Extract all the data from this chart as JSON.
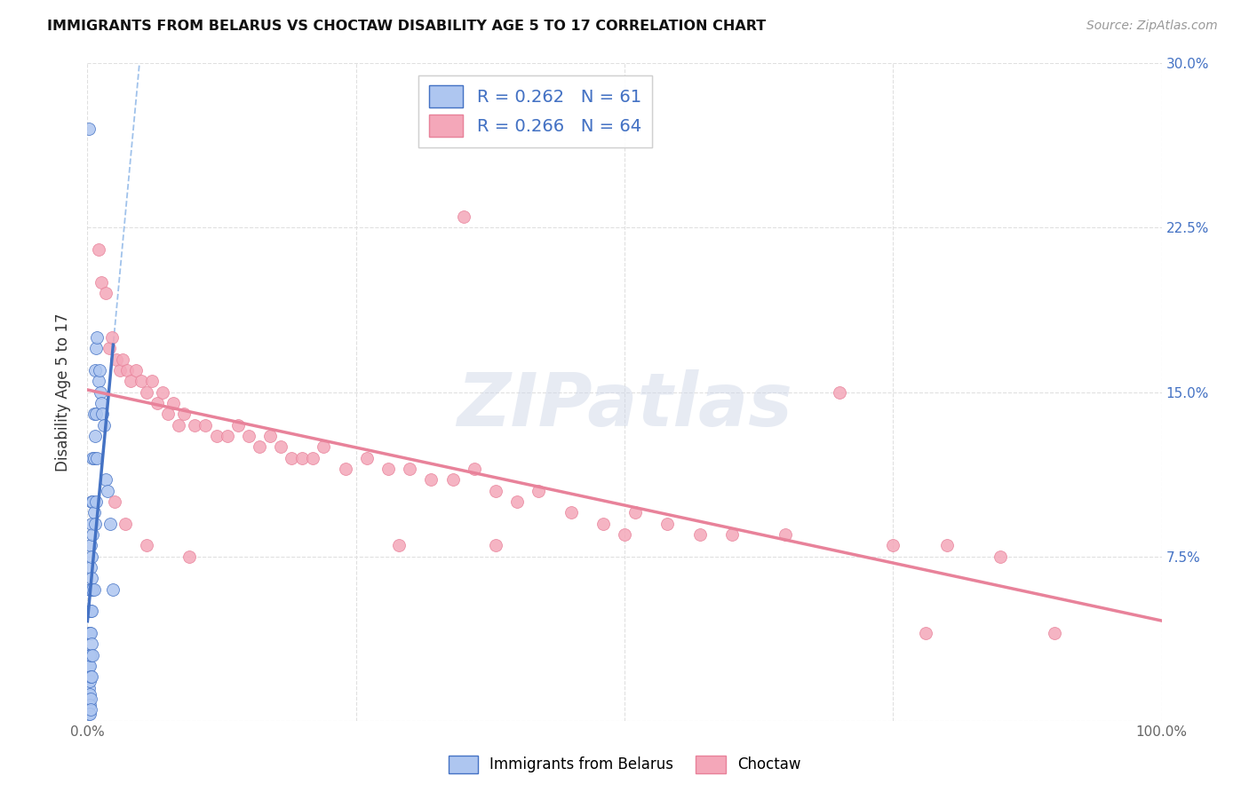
{
  "title": "IMMIGRANTS FROM BELARUS VS CHOCTAW DISABILITY AGE 5 TO 17 CORRELATION CHART",
  "source": "Source: ZipAtlas.com",
  "ylabel": "Disability Age 5 to 17",
  "legend_label1": "Immigrants from Belarus",
  "legend_label2": "Choctaw",
  "r1": 0.262,
  "n1": 61,
  "r2": 0.266,
  "n2": 64,
  "xlim": [
    0.0,
    1.0
  ],
  "ylim": [
    0.0,
    0.3
  ],
  "xtick_positions": [
    0.0,
    0.25,
    0.5,
    0.75,
    1.0
  ],
  "xticklabels": [
    "0.0%",
    "",
    "",
    "",
    "100.0%"
  ],
  "ytick_positions": [
    0.0,
    0.075,
    0.15,
    0.225,
    0.3
  ],
  "yticklabels_right": [
    "",
    "7.5%",
    "15.0%",
    "22.5%",
    "30.0%"
  ],
  "color_belarus": "#aec6f0",
  "color_choctaw": "#f4a7b9",
  "edge_belarus": "#4472c4",
  "edge_choctaw": "#e8829a",
  "line_belarus": "#4472c4",
  "line_choctaw": "#e8829a",
  "dashed_color": "#90b8e8",
  "grid_color": "#e0e0e0",
  "background": "#ffffff",
  "watermark": "ZIPatlas",
  "scatter_belarus_x": [
    0.001,
    0.001,
    0.001,
    0.001,
    0.001,
    0.001,
    0.001,
    0.001,
    0.001,
    0.002,
    0.002,
    0.002,
    0.002,
    0.002,
    0.002,
    0.002,
    0.002,
    0.002,
    0.003,
    0.003,
    0.003,
    0.003,
    0.003,
    0.003,
    0.003,
    0.003,
    0.003,
    0.004,
    0.004,
    0.004,
    0.004,
    0.004,
    0.004,
    0.004,
    0.005,
    0.005,
    0.005,
    0.005,
    0.005,
    0.006,
    0.006,
    0.006,
    0.006,
    0.007,
    0.007,
    0.007,
    0.008,
    0.008,
    0.008,
    0.009,
    0.009,
    0.01,
    0.011,
    0.012,
    0.013,
    0.014,
    0.015,
    0.017,
    0.019,
    0.021,
    0.024
  ],
  "scatter_belarus_y": [
    0.27,
    0.04,
    0.03,
    0.025,
    0.02,
    0.015,
    0.01,
    0.007,
    0.003,
    0.06,
    0.05,
    0.04,
    0.03,
    0.025,
    0.018,
    0.012,
    0.007,
    0.003,
    0.08,
    0.07,
    0.06,
    0.05,
    0.04,
    0.03,
    0.02,
    0.01,
    0.005,
    0.1,
    0.09,
    0.075,
    0.065,
    0.05,
    0.035,
    0.02,
    0.12,
    0.1,
    0.085,
    0.06,
    0.03,
    0.14,
    0.12,
    0.095,
    0.06,
    0.16,
    0.13,
    0.09,
    0.17,
    0.14,
    0.1,
    0.175,
    0.12,
    0.155,
    0.16,
    0.15,
    0.145,
    0.14,
    0.135,
    0.11,
    0.105,
    0.09,
    0.06
  ],
  "scatter_choctaw_x": [
    0.01,
    0.013,
    0.017,
    0.02,
    0.023,
    0.027,
    0.03,
    0.033,
    0.037,
    0.04,
    0.045,
    0.05,
    0.055,
    0.06,
    0.065,
    0.07,
    0.075,
    0.08,
    0.085,
    0.09,
    0.1,
    0.11,
    0.12,
    0.13,
    0.14,
    0.15,
    0.16,
    0.17,
    0.18,
    0.19,
    0.2,
    0.21,
    0.22,
    0.24,
    0.26,
    0.28,
    0.3,
    0.32,
    0.34,
    0.36,
    0.38,
    0.4,
    0.42,
    0.45,
    0.48,
    0.51,
    0.54,
    0.57,
    0.6,
    0.65,
    0.7,
    0.75,
    0.8,
    0.85,
    0.9,
    0.35,
    0.78,
    0.025,
    0.035,
    0.055,
    0.095,
    0.29,
    0.38,
    0.5
  ],
  "scatter_choctaw_y": [
    0.215,
    0.2,
    0.195,
    0.17,
    0.175,
    0.165,
    0.16,
    0.165,
    0.16,
    0.155,
    0.16,
    0.155,
    0.15,
    0.155,
    0.145,
    0.15,
    0.14,
    0.145,
    0.135,
    0.14,
    0.135,
    0.135,
    0.13,
    0.13,
    0.135,
    0.13,
    0.125,
    0.13,
    0.125,
    0.12,
    0.12,
    0.12,
    0.125,
    0.115,
    0.12,
    0.115,
    0.115,
    0.11,
    0.11,
    0.115,
    0.105,
    0.1,
    0.105,
    0.095,
    0.09,
    0.095,
    0.09,
    0.085,
    0.085,
    0.085,
    0.15,
    0.08,
    0.08,
    0.075,
    0.04,
    0.23,
    0.04,
    0.1,
    0.09,
    0.08,
    0.075,
    0.08,
    0.08,
    0.085
  ]
}
